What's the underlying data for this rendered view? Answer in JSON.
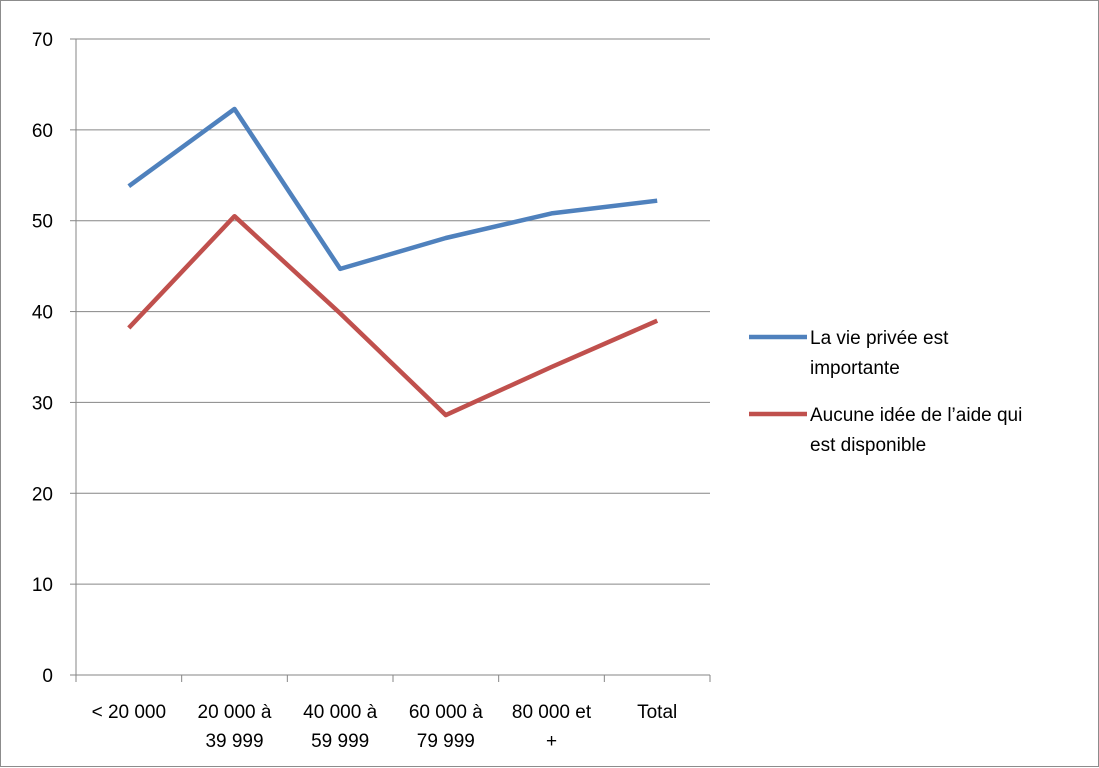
{
  "chart_data": {
    "type": "line",
    "categories": [
      [
        "< 20 000"
      ],
      [
        "20 000 à",
        "39 999"
      ],
      [
        "40 000 à",
        "59 999"
      ],
      [
        "60 000 à",
        "79 999"
      ],
      [
        "80 000 et",
        "+"
      ],
      [
        "Total"
      ]
    ],
    "series": [
      {
        "name": [
          "La vie privée est",
          "importante"
        ],
        "color": "#4f81bd",
        "values": [
          53.8,
          62.3,
          44.7,
          48.1,
          50.8,
          52.2
        ]
      },
      {
        "name": [
          "Aucune idée de l’aide qui",
          "est disponible"
        ],
        "color": "#c0504d",
        "values": [
          38.2,
          50.5,
          39.8,
          28.6,
          33.9,
          39.0
        ]
      }
    ],
    "ylim": [
      0,
      70
    ],
    "yticks": [
      0,
      10,
      20,
      30,
      40,
      50,
      60,
      70
    ],
    "grid": true,
    "legend_position": "right"
  }
}
